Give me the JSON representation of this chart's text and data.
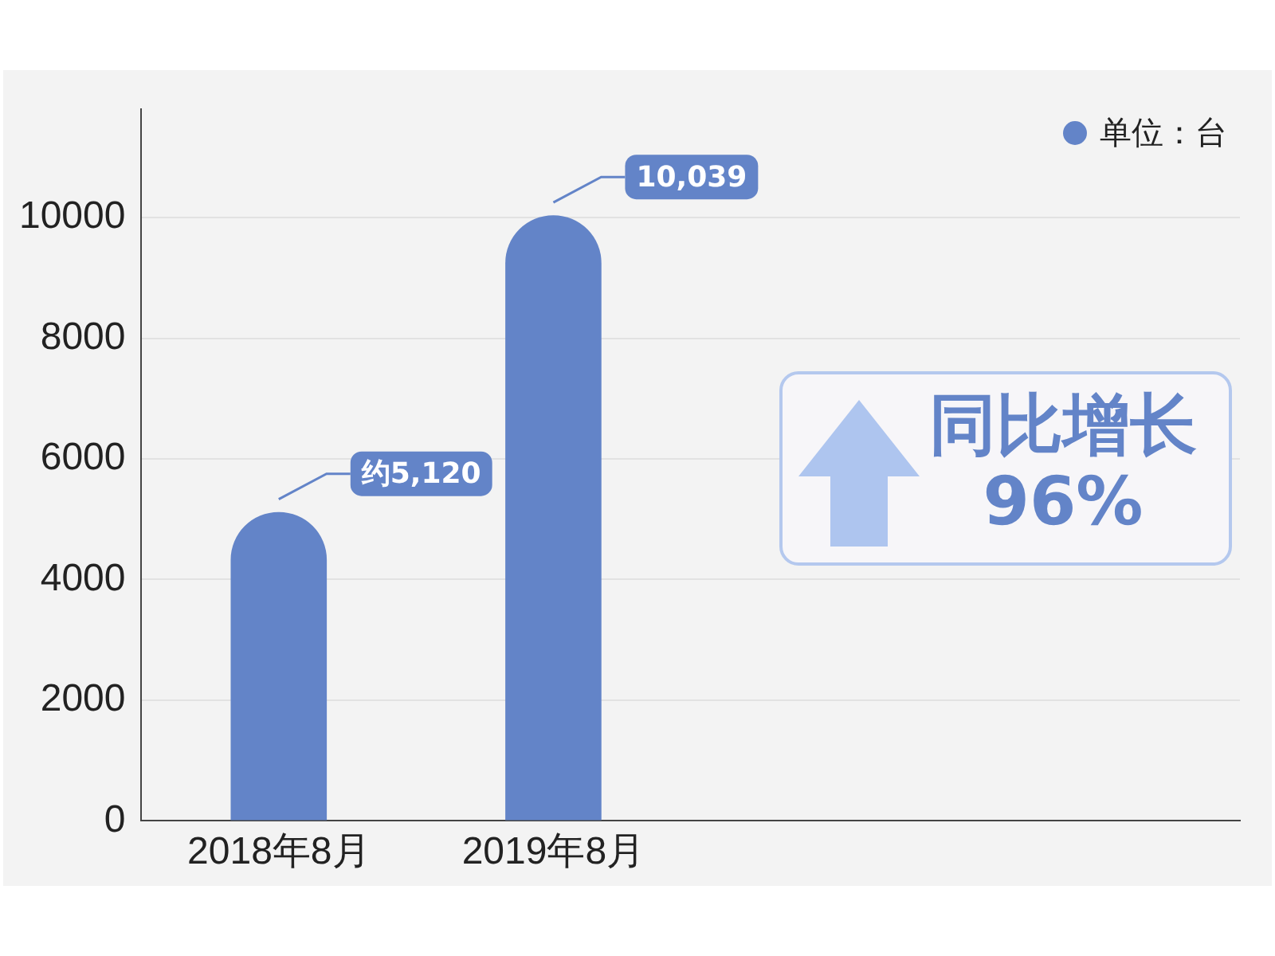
{
  "chart_data": {
    "type": "bar",
    "categories": [
      "2018年8月",
      "2019年8月",
      null,
      null
    ],
    "series": [
      {
        "name": "单位：台",
        "color": "#6384c8",
        "values": [
          5120,
          10039,
          null,
          null
        ],
        "value_labels": [
          "约5,120",
          "10,039",
          null,
          null
        ]
      }
    ],
    "ylim": [
      0,
      11800
    ],
    "yticks": [
      0,
      2000,
      4000,
      6000,
      8000,
      10000
    ],
    "grid": "y",
    "legend": "top right",
    "annotations": [
      "同比增长",
      "96%"
    ]
  }
}
